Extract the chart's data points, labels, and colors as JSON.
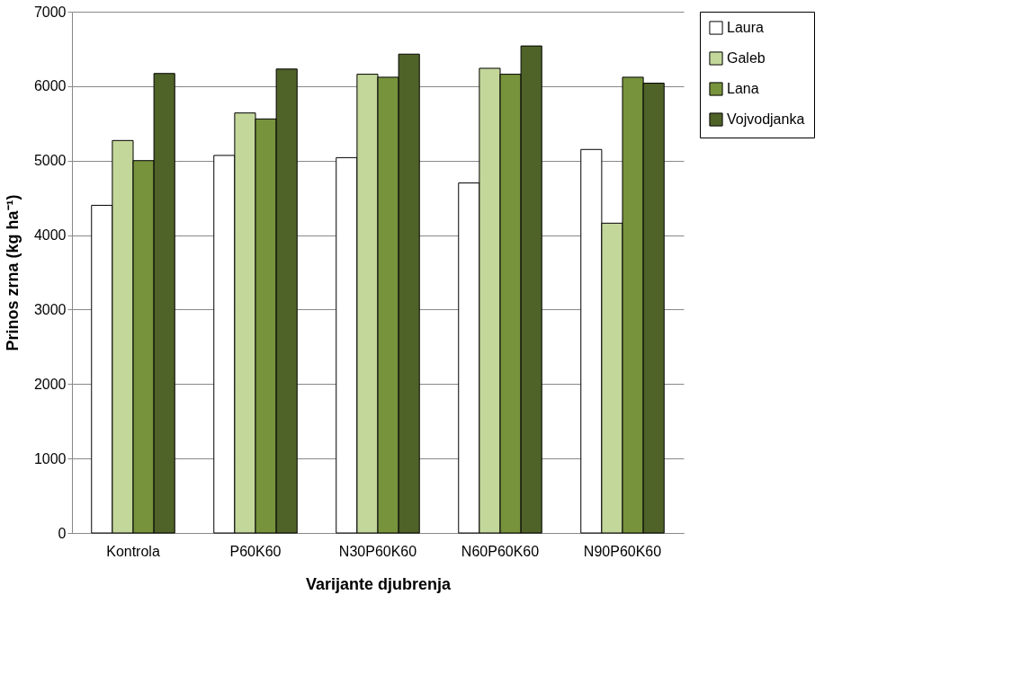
{
  "chart_data": {
    "type": "bar",
    "xlabel": "Varijante djubrenja",
    "ylabel": "Prinos zrna  (kg ha⁻¹)",
    "categories": [
      "Kontrola",
      "P60K60",
      "N30P60K60",
      "N60P60K60",
      "N90P60K60"
    ],
    "series": [
      {
        "name": "Laura",
        "color": "#ffffff",
        "values": [
          4400,
          5070,
          5040,
          4700,
          5150
        ]
      },
      {
        "name": "Galeb",
        "color": "#c4d79b",
        "values": [
          5270,
          5640,
          6160,
          6240,
          4160
        ]
      },
      {
        "name": "Lana",
        "color": "#77933c",
        "values": [
          5000,
          5560,
          6120,
          6160,
          6120
        ]
      },
      {
        "name": "Vojvodjanka",
        "color": "#4f6228",
        "values": [
          6170,
          6230,
          6430,
          6540,
          6040
        ]
      }
    ],
    "ylim": [
      0,
      7000
    ],
    "yticks": [
      0,
      1000,
      2000,
      3000,
      4000,
      5000,
      6000,
      7000
    ],
    "grid": "y",
    "legend": "right"
  }
}
